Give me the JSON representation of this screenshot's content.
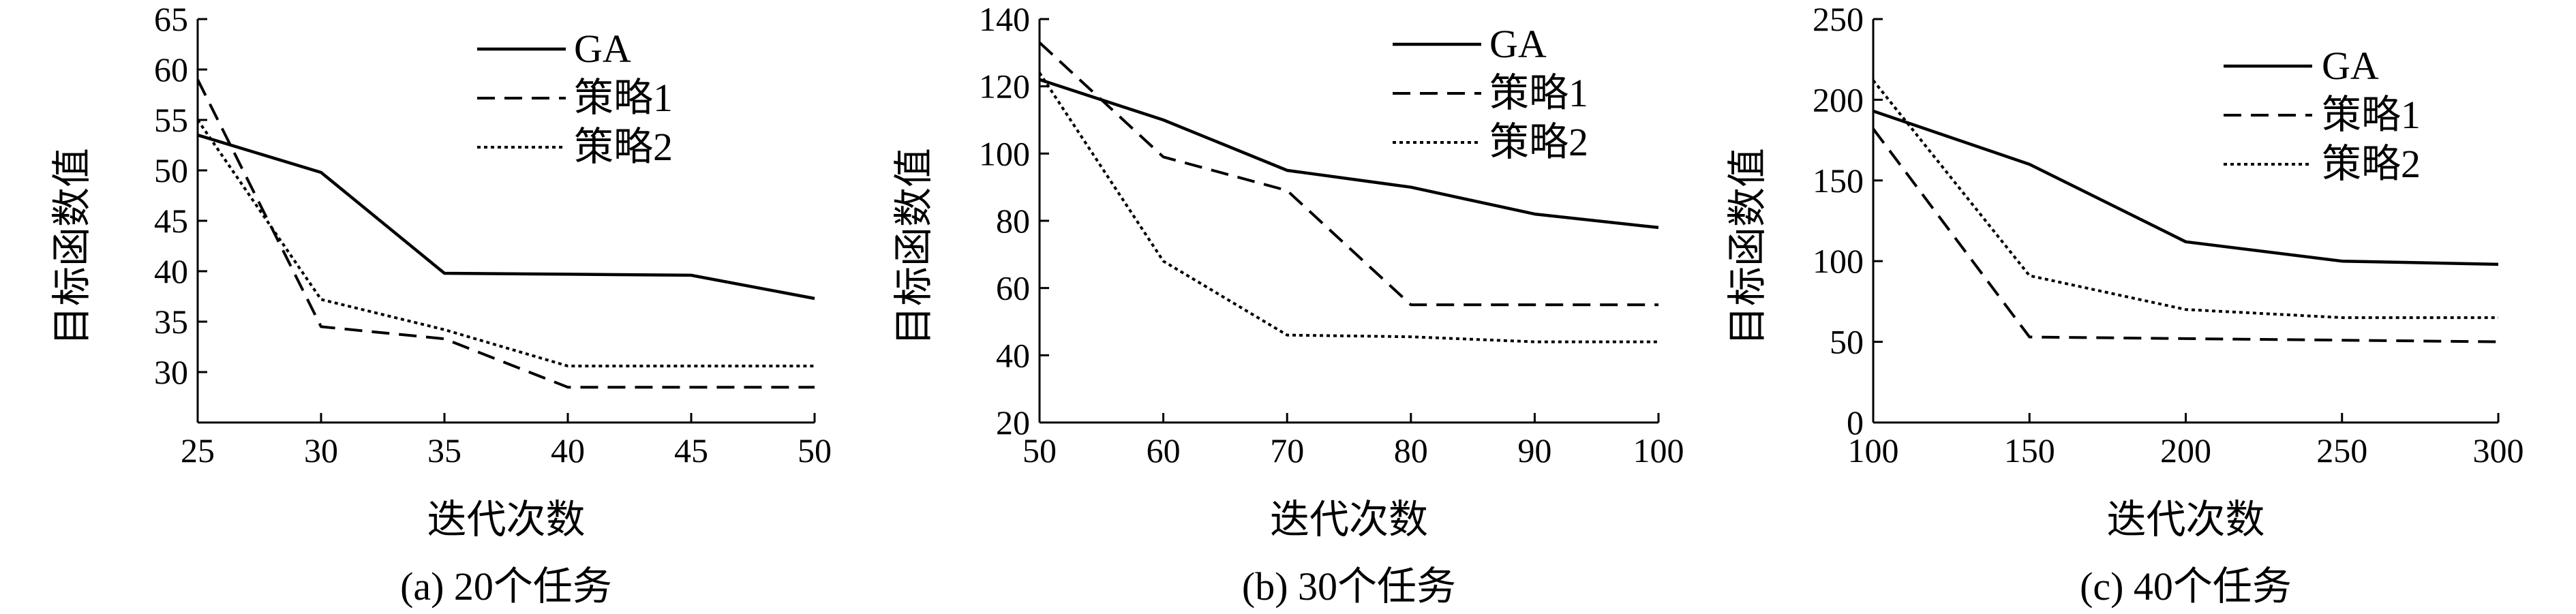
{
  "chart_data": [
    {
      "type": "line",
      "caption": "(a) 20个任务",
      "xlabel": "迭代次数",
      "ylabel": "目标函数值",
      "xlim": [
        25,
        50
      ],
      "ylim": [
        25,
        65
      ],
      "xticks": [
        25,
        30,
        35,
        40,
        45,
        50
      ],
      "yticks": [
        30,
        35,
        40,
        45,
        50,
        55,
        60,
        65
      ],
      "legend_position": "top-right",
      "grid": false,
      "series": [
        {
          "name": "GA",
          "dash": "solid",
          "x": [
            25,
            30,
            35,
            40,
            45,
            50
          ],
          "values": [
            53.5,
            49.8,
            39.8,
            39.7,
            39.6,
            37.3
          ]
        },
        {
          "name": "策略1",
          "dash": "dashed",
          "x": [
            25,
            30,
            35,
            40,
            45,
            50
          ],
          "values": [
            59,
            34.5,
            33.3,
            28.5,
            28.5,
            28.5
          ]
        },
        {
          "name": "策略2",
          "dash": "dotted",
          "x": [
            25,
            30,
            35,
            40,
            45,
            50
          ],
          "values": [
            55,
            37.2,
            34.2,
            30.6,
            30.6,
            30.6
          ]
        }
      ]
    },
    {
      "type": "line",
      "caption": "(b) 30个任务",
      "xlabel": "迭代次数",
      "ylabel": "目标函数值",
      "xlim": [
        50,
        100
      ],
      "ylim": [
        20,
        140
      ],
      "xticks": [
        50,
        60,
        70,
        80,
        90,
        100
      ],
      "yticks": [
        20,
        40,
        60,
        80,
        100,
        120,
        140
      ],
      "legend_position": "top-right",
      "grid": false,
      "series": [
        {
          "name": "GA",
          "dash": "solid",
          "x": [
            50,
            60,
            70,
            80,
            90,
            100
          ],
          "values": [
            122,
            110,
            95,
            90,
            82,
            78
          ]
        },
        {
          "name": "策略1",
          "dash": "dashed",
          "x": [
            50,
            60,
            70,
            80,
            90,
            100
          ],
          "values": [
            133,
            99,
            89,
            55,
            55,
            55
          ]
        },
        {
          "name": "策略2",
          "dash": "dotted",
          "x": [
            50,
            60,
            70,
            80,
            90,
            100
          ],
          "values": [
            124,
            68,
            46,
            45.5,
            44,
            44
          ]
        }
      ]
    },
    {
      "type": "line",
      "caption": "(c) 40个任务",
      "xlabel": "迭代次数",
      "ylabel": "目标函数值",
      "xlim": [
        100,
        300
      ],
      "ylim": [
        0,
        250
      ],
      "xticks": [
        100,
        150,
        200,
        250,
        300
      ],
      "yticks": [
        0,
        50,
        100,
        150,
        200,
        250
      ],
      "legend_position": "top-right",
      "grid": false,
      "series": [
        {
          "name": "GA",
          "dash": "solid",
          "x": [
            100,
            150,
            200,
            250,
            300
          ],
          "values": [
            193,
            160,
            112,
            100,
            98
          ]
        },
        {
          "name": "策略1",
          "dash": "dashed",
          "x": [
            100,
            150,
            200,
            250,
            300
          ],
          "values": [
            182,
            53,
            52,
            51,
            50
          ]
        },
        {
          "name": "策略2",
          "dash": "dotted",
          "x": [
            100,
            150,
            200,
            250,
            300
          ],
          "values": [
            212,
            91,
            70,
            65,
            65
          ]
        }
      ]
    }
  ]
}
